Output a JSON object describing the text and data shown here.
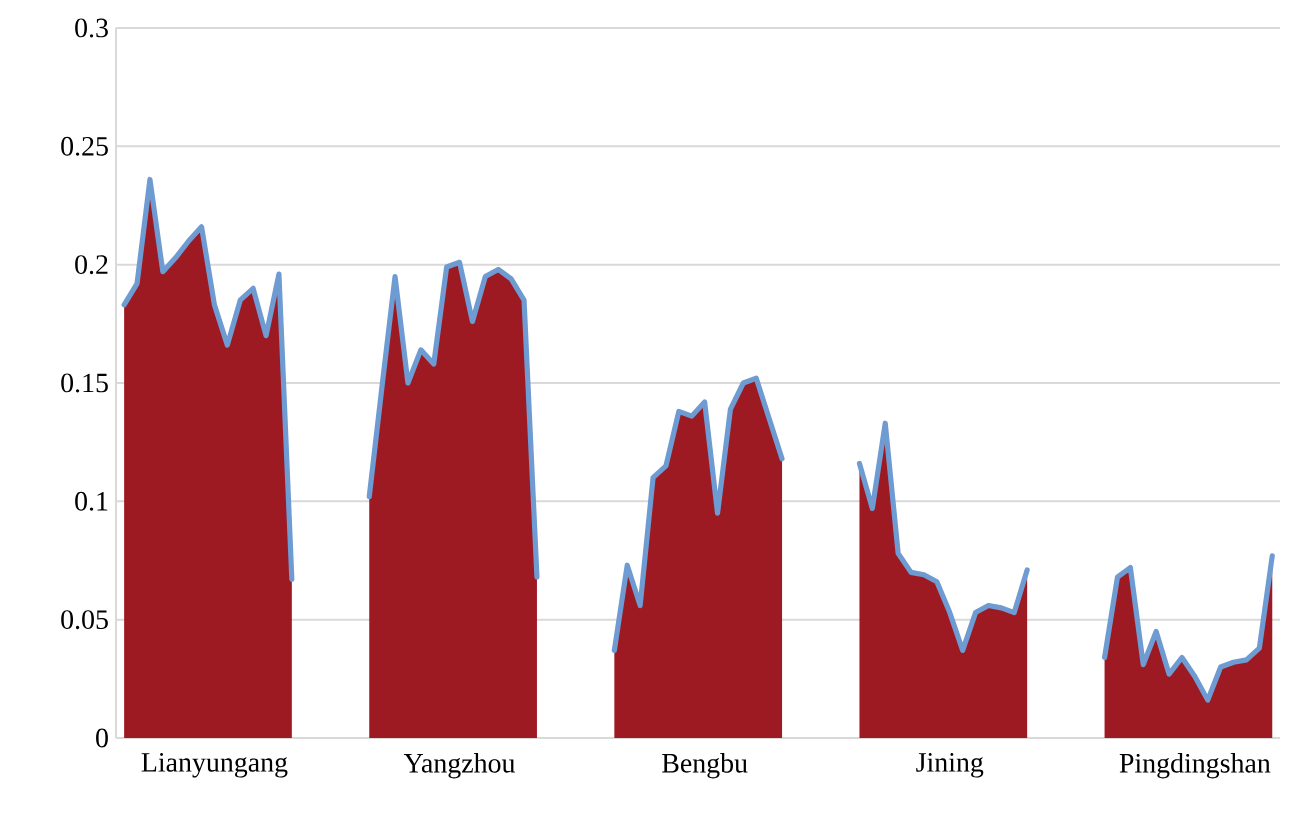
{
  "chart_data": {
    "type": "area",
    "categories": [
      null,
      null,
      null,
      null,
      null,
      null,
      null,
      "Lianyungang",
      null,
      null,
      null,
      null,
      null,
      null,
      null,
      null,
      null,
      null,
      null,
      null,
      null,
      null,
      null,
      null,
      null,
      null,
      "Yangzhou",
      null,
      null,
      null,
      null,
      null,
      null,
      null,
      null,
      null,
      null,
      null,
      null,
      null,
      null,
      null,
      null,
      null,
      null,
      "Bengbu",
      null,
      null,
      null,
      null,
      null,
      null,
      null,
      null,
      null,
      null,
      null,
      null,
      null,
      null,
      null,
      null,
      null,
      null,
      "Jining",
      null,
      null,
      null,
      null,
      null,
      null,
      null,
      null,
      null,
      null,
      null,
      null,
      null,
      null,
      null,
      null,
      null,
      null,
      "Pingdingshan",
      null,
      null,
      null,
      null,
      null,
      null
    ],
    "series": [
      {
        "color": "#9e1a22",
        "values": [
          0.183,
          0.192,
          0.236,
          0.197,
          0.203,
          0.21,
          0.216,
          0.183,
          0.166,
          0.185,
          0.19,
          0.17,
          0.196,
          0.067,
          null,
          null,
          null,
          null,
          null,
          0.102,
          0.149,
          0.195,
          0.15,
          0.164,
          0.158,
          0.199,
          0.201,
          0.176,
          0.195,
          0.198,
          0.194,
          0.185,
          0.068,
          null,
          null,
          null,
          null,
          null,
          0.037,
          0.073,
          0.056,
          0.11,
          0.115,
          0.138,
          0.136,
          0.142,
          0.095,
          0.139,
          0.15,
          0.152,
          0.135,
          0.118,
          null,
          null,
          null,
          null,
          null,
          0.116,
          0.097,
          0.133,
          0.078,
          0.07,
          0.069,
          0.066,
          0.053,
          0.037,
          0.053,
          0.056,
          0.055,
          0.053,
          0.071,
          null,
          null,
          null,
          null,
          null,
          0.034,
          0.068,
          0.072,
          0.031,
          0.045,
          0.027,
          0.034,
          0.026,
          0.016,
          0.03,
          0.032,
          0.033,
          0.038,
          0.077
        ]
      },
      {
        "type": "line",
        "color": "#6f9bd3",
        "values": [
          0.183,
          0.192,
          0.236,
          0.197,
          0.203,
          0.21,
          0.216,
          0.183,
          0.166,
          0.185,
          0.19,
          0.17,
          0.196,
          0.067,
          null,
          null,
          null,
          null,
          null,
          0.102,
          0.149,
          0.195,
          0.15,
          0.164,
          0.158,
          0.199,
          0.201,
          0.176,
          0.195,
          0.198,
          0.194,
          0.185,
          0.068,
          null,
          null,
          null,
          null,
          null,
          0.037,
          0.073,
          0.056,
          0.11,
          0.115,
          0.138,
          0.136,
          0.142,
          0.095,
          0.139,
          0.15,
          0.152,
          0.135,
          0.118,
          null,
          null,
          null,
          null,
          null,
          0.116,
          0.097,
          0.133,
          0.078,
          0.07,
          0.069,
          0.066,
          0.053,
          0.037,
          0.053,
          0.056,
          0.055,
          0.053,
          0.071,
          null,
          null,
          null,
          null,
          null,
          0.034,
          0.068,
          0.072,
          0.031,
          0.045,
          0.027,
          0.034,
          0.026,
          0.016,
          0.03,
          0.032,
          0.033,
          0.038,
          0.077
        ]
      }
    ],
    "ylim": [
      0,
      0.3
    ],
    "yticks": [
      0,
      0.05,
      0.1,
      0.15,
      0.2,
      0.25,
      0.3
    ],
    "grid": "y",
    "marker": "none",
    "line_style": "solid"
  }
}
